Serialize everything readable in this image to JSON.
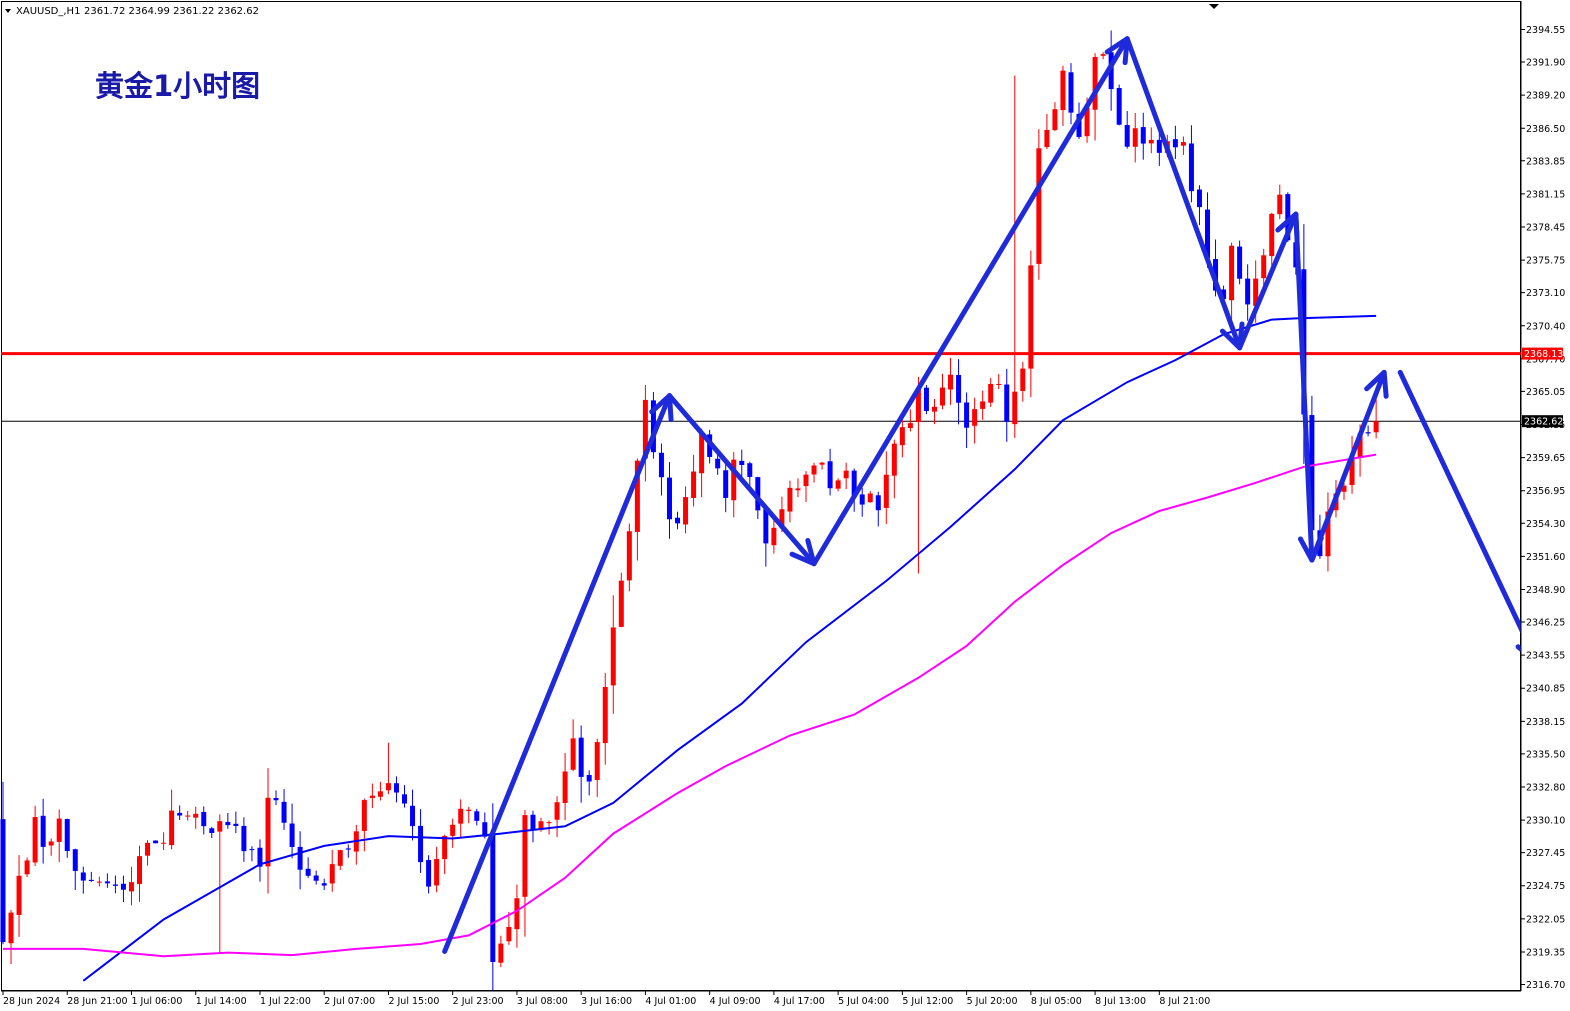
{
  "header": {
    "dropdown_icon": "triangle-down-icon",
    "symbol": "XAUUSD_,H1",
    "ohlc": "2361.72 2364.99 2361.22 2362.62"
  },
  "annotation": {
    "title": "黄金1小时图"
  },
  "colors": {
    "bull": "#ff0000",
    "bear": "#0000ff",
    "ma_fast": "#0000ff",
    "ma_slow": "#ff00ff",
    "resistance": "#ff0000",
    "current_price": "#000000",
    "arrows": "#1f2bdb",
    "title": "#1a1aa8"
  },
  "chart_data": {
    "type": "candlestick",
    "symbol": "XAUUSD",
    "timeframe": "H1",
    "price_axis": {
      "range": [
        2315.5,
        2397.0
      ],
      "ticks": [
        "2394.55",
        "2391.90",
        "2389.20",
        "2386.50",
        "2383.85",
        "2381.15",
        "2378.45",
        "2375.75",
        "2373.10",
        "2370.40",
        "2367.70",
        "2365.05",
        "2362.35",
        "2359.65",
        "2356.95",
        "2354.30",
        "2351.60",
        "2348.90",
        "2346.25",
        "2343.55",
        "2340.85",
        "2338.15",
        "2335.50",
        "2332.80",
        "2330.10",
        "2327.45",
        "2324.75",
        "2322.05",
        "2319.35",
        "2316.70"
      ]
    },
    "time_axis": {
      "labels": [
        "28 Jun 2024",
        "28 Jun 21:00",
        "1 Jul 06:00",
        "1 Jul 14:00",
        "1 Jul 22:00",
        "2 Jul 07:00",
        "2 Jul 15:00",
        "2 Jul 23:00",
        "3 Jul 08:00",
        "3 Jul 16:00",
        "4 Jul 01:00",
        "4 Jul 09:00",
        "4 Jul 17:00",
        "5 Jul 04:00",
        "5 Jul 12:00",
        "5 Jul 20:00",
        "8 Jul 05:00",
        "8 Jul 13:00",
        "8 Jul 21:00"
      ],
      "label_bar_index": [
        0,
        8,
        16,
        24,
        32,
        40,
        48,
        56,
        64,
        72,
        80,
        88,
        96,
        104,
        112,
        120,
        128,
        136,
        144
      ]
    },
    "levels": {
      "resistance": 2368.13,
      "current": 2362.62
    },
    "waypoints": [
      [
        2319.4,
        2329.8,
        2327.4,
        2329.2,
        2325.9,
        2324.7,
        2328.2,
        2331.4,
        2329.3,
        2330.4,
        2326.6,
        2338.2,
        2325.6,
        2324.0,
        2330.1,
        2331.2,
        2333.0,
        2331.6,
        2324.6,
        2329.0,
        2330.7,
        2328.6,
        2319.6,
        2323.1,
        2330.4,
        2329.6,
        2330.2,
        2333.4,
        2335.8,
        2332.3,
        2354.5,
        2364.5,
        2353.8,
        2358.1,
        2360.8,
        2357.4,
        2359.8,
        2356.2,
        2351.6,
        2357.9,
        2359.0,
        2357.3,
        2357.8,
        2356.0,
        2358.0,
        2361.5,
        2364.4,
        2363.3,
        2366.5,
        2362.0,
        2365.9,
        2363.5,
        2367.6,
        2384.8,
        2390.7,
        2385.3,
        2393.2,
        2389.9,
        2385.0,
        2386.3,
        2384.8,
        2385.3,
        2379.3,
        2371.8,
        2377.2,
        2372.8,
        2376.4,
        2381.0,
        2374.2,
        2353.9,
        2352.5,
        2355.9,
        2361.0,
        2362.6
      ],
      [
        0,
        4,
        5,
        7,
        10,
        14,
        19,
        22,
        26,
        28,
        32,
        30,
        37,
        40,
        44,
        46,
        48,
        50,
        53,
        55,
        58,
        60,
        61,
        64,
        65,
        66,
        68,
        70,
        71,
        73,
        78,
        80,
        83,
        86,
        87,
        90,
        92,
        94,
        95,
        99,
        101,
        103,
        105,
        109,
        110,
        112,
        114,
        116,
        118,
        120,
        123,
        125,
        127,
        129,
        132,
        134,
        136,
        138,
        140,
        142,
        145,
        147,
        149,
        152,
        153,
        155,
        157,
        159,
        161,
        163,
        164,
        166,
        169,
        171
      ]
    ],
    "moving_averages": [
      {
        "color": "#0000ff",
        "points": [
          [
            10,
            2317.0
          ],
          [
            20,
            2322.0
          ],
          [
            32,
            2326.5
          ],
          [
            40,
            2328.0
          ],
          [
            48,
            2328.8
          ],
          [
            56,
            2328.6
          ],
          [
            62,
            2329.0
          ],
          [
            70,
            2329.6
          ],
          [
            76,
            2331.5
          ],
          [
            84,
            2335.8
          ],
          [
            92,
            2339.6
          ],
          [
            100,
            2344.6
          ],
          [
            110,
            2349.6
          ],
          [
            118,
            2354.0
          ],
          [
            126,
            2358.7
          ],
          [
            132,
            2362.7
          ],
          [
            140,
            2365.8
          ],
          [
            146,
            2367.6
          ],
          [
            152,
            2369.7
          ],
          [
            158,
            2370.9
          ],
          [
            161,
            2371.0
          ],
          [
            171,
            2371.2
          ]
        ]
      },
      {
        "color": "#ff00ff",
        "points": [
          [
            0,
            2319.6
          ],
          [
            10,
            2319.6
          ],
          [
            20,
            2319.0
          ],
          [
            28,
            2319.3
          ],
          [
            36,
            2319.1
          ],
          [
            44,
            2319.6
          ],
          [
            52,
            2320.0
          ],
          [
            58,
            2320.7
          ],
          [
            64,
            2322.7
          ],
          [
            70,
            2325.4
          ],
          [
            76,
            2329.0
          ],
          [
            84,
            2332.3
          ],
          [
            90,
            2334.5
          ],
          [
            98,
            2337.0
          ],
          [
            106,
            2338.7
          ],
          [
            114,
            2341.7
          ],
          [
            120,
            2344.3
          ],
          [
            126,
            2347.9
          ],
          [
            132,
            2350.9
          ],
          [
            138,
            2353.5
          ],
          [
            144,
            2355.3
          ],
          [
            150,
            2356.4
          ],
          [
            156,
            2357.6
          ],
          [
            162,
            2358.9
          ],
          [
            171,
            2359.9
          ]
        ]
      }
    ],
    "trend_arrows": [
      [
        [
          55,
          2319.4
        ],
        [
          83,
          2364.7
        ]
      ],
      [
        [
          83,
          2364.7
        ],
        [
          101,
          2351.0
        ]
      ],
      [
        [
          101,
          2351.0
        ],
        [
          140,
          2393.8
        ]
      ],
      [
        [
          140,
          2393.8
        ],
        [
          154,
          2368.6
        ]
      ],
      [
        [
          154,
          2368.6
        ],
        [
          161,
          2379.5
        ]
      ],
      [
        [
          161,
          2379.5
        ],
        [
          163,
          2351.3
        ]
      ],
      [
        [
          163,
          2351.3
        ],
        [
          172,
          2366.6
        ]
      ],
      [
        [
          174,
          2366.6
        ],
        [
          191,
          2343.0
        ]
      ]
    ]
  }
}
